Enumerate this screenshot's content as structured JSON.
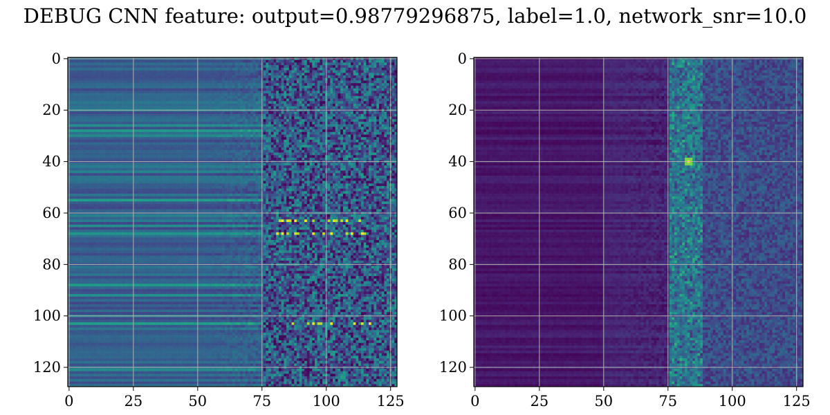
{
  "figure": {
    "title": "DEBUG CNN feature: output=0.98779296875, label=1.0, network_snr=10.0"
  },
  "chart_data": [
    {
      "type": "heatmap",
      "colormap": "viridis",
      "rows": 128,
      "cols": 128,
      "xlim": [
        -0.5,
        127.5
      ],
      "ylim": [
        127.5,
        -0.5
      ],
      "xticks": [
        0,
        25,
        50,
        75,
        100,
        125
      ],
      "yticks": [
        0,
        20,
        40,
        60,
        80,
        100,
        120
      ],
      "xtick_labels": [
        "0",
        "25",
        "50",
        "75",
        "100",
        "125"
      ],
      "ytick_labels": [
        "0",
        "20",
        "40",
        "60",
        "80",
        "100",
        "120"
      ],
      "grid": true,
      "bright_rows": [
        17,
        20,
        26,
        28,
        30,
        42,
        44,
        55,
        61,
        63,
        65,
        68,
        88,
        92,
        100,
        103,
        121
      ],
      "hot_rows": [
        63,
        68,
        103
      ]
    },
    {
      "type": "heatmap",
      "colormap": "viridis",
      "rows": 128,
      "cols": 128,
      "xlim": [
        -0.5,
        127.5
      ],
      "ylim": [
        127.5,
        -0.5
      ],
      "xticks": [
        0,
        25,
        50,
        75,
        100,
        125
      ],
      "yticks": [
        0,
        20,
        40,
        60,
        80,
        100,
        120
      ],
      "xtick_labels": [
        "0",
        "25",
        "50",
        "75",
        "100",
        "125"
      ],
      "ytick_labels": [
        "0",
        "20",
        "40",
        "60",
        "80",
        "100",
        "120"
      ],
      "grid": true,
      "hot_band_cols": [
        76,
        88
      ],
      "peak": {
        "row": 40,
        "col": 83
      }
    }
  ]
}
